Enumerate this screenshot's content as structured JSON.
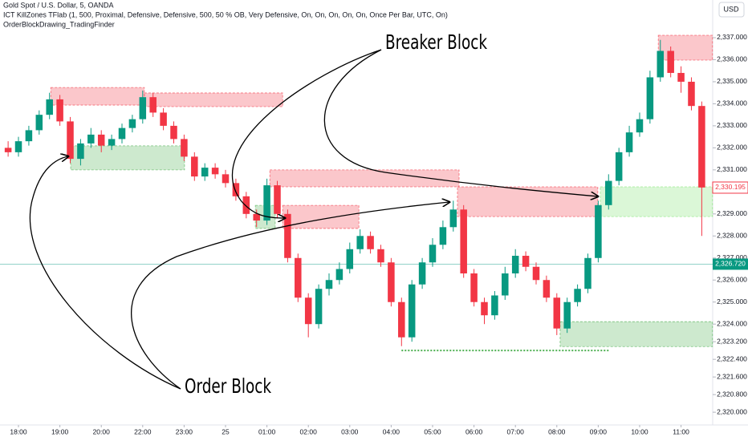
{
  "header": {
    "symbol": "Gold Spot / U.S. Dollar, 5, OANDA",
    "indicator": "ICT KillZones TFlab (1, 500, Proximal, Defensive, Defensive, 500, 50 % OB, Very Defensive, On, On, On, On, On, Once Per Bar, UTC, On)",
    "script": "OrderBlockDrawing_TradingFinder",
    "currency": "USD"
  },
  "annotations": {
    "breaker": "Breaker Block",
    "order": "Order Block"
  },
  "chart_data": {
    "type": "candlestick",
    "up_color": "#089981",
    "down_color": "#f23645",
    "grid": false,
    "xlim": [
      -0.446,
      16.764
    ],
    "ylim": [
      2319.24,
      2338.71
    ],
    "xticks": [
      {
        "value": 0,
        "label": "18:00"
      },
      {
        "value": 1,
        "label": "19:00"
      },
      {
        "value": 2,
        "label": "20:00"
      },
      {
        "value": 3,
        "label": "22:00"
      },
      {
        "value": 4,
        "label": "23:00"
      },
      {
        "value": 5,
        "label": "25"
      },
      {
        "value": 6,
        "label": "01:00"
      },
      {
        "value": 7,
        "label": "02:00"
      },
      {
        "value": 8,
        "label": "03:00"
      },
      {
        "value": 9,
        "label": "04:00"
      },
      {
        "value": 10,
        "label": "05:00"
      },
      {
        "value": 11,
        "label": "06:00"
      },
      {
        "value": 12,
        "label": "07:00"
      },
      {
        "value": 13,
        "label": "08:00"
      },
      {
        "value": 14,
        "label": "09:00"
      },
      {
        "value": 15,
        "label": "10:00"
      },
      {
        "value": 16,
        "label": "11:00"
      }
    ],
    "yticks": [
      {
        "value": 2337,
        "label": "2,337.000"
      },
      {
        "value": 2336,
        "label": "2,336.000"
      },
      {
        "value": 2335,
        "label": "2,335.000"
      },
      {
        "value": 2334,
        "label": "2,334.000"
      },
      {
        "value": 2333,
        "label": "2,333.000"
      },
      {
        "value": 2332,
        "label": "2,332.000"
      },
      {
        "value": 2331,
        "label": "2,331.000"
      },
      {
        "value": 2329,
        "label": "2,329.000"
      },
      {
        "value": 2328,
        "label": "2,328.000"
      },
      {
        "value": 2327,
        "label": "2,327.000"
      },
      {
        "value": 2326,
        "label": "2,326.000"
      },
      {
        "value": 2325,
        "label": "2,325.000"
      },
      {
        "value": 2324,
        "label": "2,324.000"
      },
      {
        "value": 2323.2,
        "label": "2,323.200"
      },
      {
        "value": 2322.4,
        "label": "2,322.400"
      },
      {
        "value": 2321.6,
        "label": "2,321.600"
      },
      {
        "value": 2320.8,
        "label": "2,320.800"
      },
      {
        "value": 2320,
        "label": "2,320.000"
      }
    ],
    "x": [
      -0.25,
      0,
      0.25,
      0.5,
      0.75,
      1,
      1.25,
      1.5,
      1.75,
      2,
      2.25,
      2.5,
      2.75,
      3,
      3.25,
      3.5,
      3.75,
      4,
      4.25,
      4.5,
      4.75,
      5,
      5.25,
      5.5,
      5.75,
      6,
      6.25,
      6.5,
      6.75,
      7,
      7.25,
      7.5,
      7.75,
      8,
      8.25,
      8.5,
      8.75,
      9,
      9.25,
      9.5,
      9.75,
      10,
      10.25,
      10.5,
      10.75,
      11,
      11.25,
      11.5,
      11.75,
      12,
      12.25,
      12.5,
      12.75,
      13,
      13.25,
      13.5,
      13.75,
      14,
      14.25,
      14.5,
      14.75,
      15,
      15.25,
      15.5,
      15.75,
      16,
      16.25,
      16.5
    ],
    "open": [
      2332.0,
      2331.8,
      2332.3,
      2332.8,
      2333.5,
      2334.2,
      2333.2,
      2331.5,
      2332.2,
      2332.6,
      2332.1,
      2332.4,
      2332.9,
      2333.3,
      2334.3,
      2333.6,
      2333.0,
      2332.4,
      2331.6,
      2330.7,
      2331.1,
      2330.8,
      2330.4,
      2329.8,
      2329.0,
      2328.7,
      2330.3,
      2329.0,
      2327.0,
      2325.2,
      2324.0,
      2325.6,
      2326.0,
      2326.5,
      2327.4,
      2328.0,
      2327.4,
      2326.8,
      2325.0,
      2323.4,
      2325.8,
      2326.8,
      2327.6,
      2328.4,
      2329.2,
      2326.3,
      2325.0,
      2324.4,
      2325.3,
      2326.3,
      2327.1,
      2326.6,
      2326.0,
      2325.2,
      2323.8,
      2325.0,
      2325.6,
      2327.0,
      2329.4,
      2330.5,
      2331.8,
      2332.7,
      2333.3,
      2335.2,
      2336.4,
      2335.4,
      2335.0,
      2333.9
    ],
    "high": [
      2332.3,
      2332.5,
      2333.0,
      2333.7,
      2334.5,
      2334.4,
      2333.4,
      2332.4,
      2332.9,
      2332.8,
      2332.6,
      2333.1,
      2333.5,
      2334.6,
      2334.5,
      2333.8,
      2333.2,
      2332.6,
      2331.8,
      2331.3,
      2331.3,
      2331.0,
      2330.6,
      2330.0,
      2329.2,
      2330.6,
      2330.5,
      2329.2,
      2327.2,
      2325.4,
      2325.8,
      2326.3,
      2326.8,
      2327.7,
      2328.3,
      2328.2,
      2327.6,
      2327.0,
      2325.2,
      2326.0,
      2327.0,
      2327.9,
      2328.7,
      2329.6,
      2329.4,
      2326.5,
      2325.2,
      2325.5,
      2326.6,
      2327.4,
      2327.3,
      2326.8,
      2326.2,
      2325.4,
      2325.2,
      2325.8,
      2327.2,
      2329.6,
      2330.8,
      2332.0,
      2333.0,
      2333.6,
      2335.5,
      2336.9,
      2336.6,
      2335.7,
      2335.2,
      2334.1
    ],
    "low": [
      2331.6,
      2331.6,
      2332.1,
      2332.6,
      2333.3,
      2333.0,
      2331.3,
      2331.2,
      2332.0,
      2331.8,
      2331.9,
      2332.2,
      2332.7,
      2333.1,
      2333.4,
      2332.8,
      2332.2,
      2331.4,
      2330.5,
      2330.5,
      2330.6,
      2330.2,
      2329.6,
      2328.8,
      2328.4,
      2328.5,
      2328.8,
      2326.8,
      2325.0,
      2323.4,
      2323.8,
      2325.3,
      2325.8,
      2326.3,
      2327.2,
      2327.2,
      2326.6,
      2324.8,
      2323.0,
      2323.2,
      2325.6,
      2326.6,
      2327.4,
      2328.2,
      2326.1,
      2324.8,
      2324.0,
      2324.2,
      2325.1,
      2326.1,
      2326.4,
      2325.8,
      2325.0,
      2323.5,
      2323.6,
      2324.8,
      2325.4,
      2326.8,
      2329.2,
      2330.3,
      2331.6,
      2332.5,
      2333.1,
      2335.0,
      2335.2,
      2334.5,
      2333.7,
      2328.0
    ],
    "close": [
      2331.8,
      2332.3,
      2332.8,
      2333.5,
      2334.2,
      2333.2,
      2331.5,
      2332.2,
      2332.6,
      2332.1,
      2332.4,
      2332.9,
      2333.3,
      2334.3,
      2333.6,
      2333.0,
      2332.4,
      2331.6,
      2330.7,
      2331.1,
      2330.8,
      2330.4,
      2329.8,
      2329.0,
      2328.7,
      2330.3,
      2329.0,
      2327.0,
      2325.2,
      2324.0,
      2325.6,
      2326.0,
      2326.5,
      2327.4,
      2328.0,
      2327.4,
      2326.8,
      2325.0,
      2323.4,
      2325.8,
      2326.8,
      2327.6,
      2328.4,
      2329.2,
      2326.3,
      2325.0,
      2324.4,
      2325.3,
      2326.3,
      2327.1,
      2326.6,
      2326.0,
      2325.2,
      2323.8,
      2325.0,
      2325.6,
      2327.0,
      2329.4,
      2330.5,
      2331.8,
      2332.7,
      2333.3,
      2335.2,
      2336.4,
      2335.4,
      2335.0,
      2333.9,
      2330.2
    ],
    "zones": [
      {
        "x0": 0.78,
        "x1": 3.04,
        "low": 2333.94,
        "high": 2334.74,
        "color": "#f23645"
      },
      {
        "x0": 3.04,
        "x1": 6.38,
        "low": 2333.87,
        "high": 2334.49,
        "color": "#f23645"
      },
      {
        "x0": 1.26,
        "x1": 4.01,
        "low": 2331.0,
        "high": 2332.09,
        "color": "#4caf50"
      },
      {
        "x0": 6.07,
        "x1": 10.64,
        "low": 2330.23,
        "high": 2331.0,
        "color": "#f23645"
      },
      {
        "x0": 6.38,
        "x1": 8.22,
        "low": 2328.34,
        "high": 2329.39,
        "color": "#f23645"
      },
      {
        "x0": 5.72,
        "x1": 6.2,
        "low": 2328.34,
        "high": 2329.39,
        "color": "#4caf50"
      },
      {
        "x0": 10.6,
        "x1": 13.99,
        "low": 2328.88,
        "high": 2330.23,
        "color": "#f23645"
      },
      {
        "x0": 14.05,
        "x1": 16.76,
        "low": 2328.88,
        "high": 2330.23,
        "color": "#7ee26f"
      },
      {
        "x0": 15.45,
        "x1": 16.76,
        "low": 2335.98,
        "high": 2337.11,
        "color": "#f23645"
      },
      {
        "x0": 13.08,
        "x1": 16.76,
        "low": 2322.98,
        "high": 2324.11,
        "color": "#4caf50"
      }
    ],
    "level_line": {
      "x0": 9.25,
      "x1": 14.25,
      "value": 2322.8,
      "color": "#4caf50"
    },
    "price_line": {
      "value": 2326.72,
      "label": "2,326.720",
      "color": "#089981"
    },
    "marker_label": {
      "value": 2330.195,
      "label": "2,330.195",
      "color": "#f23645"
    }
  }
}
